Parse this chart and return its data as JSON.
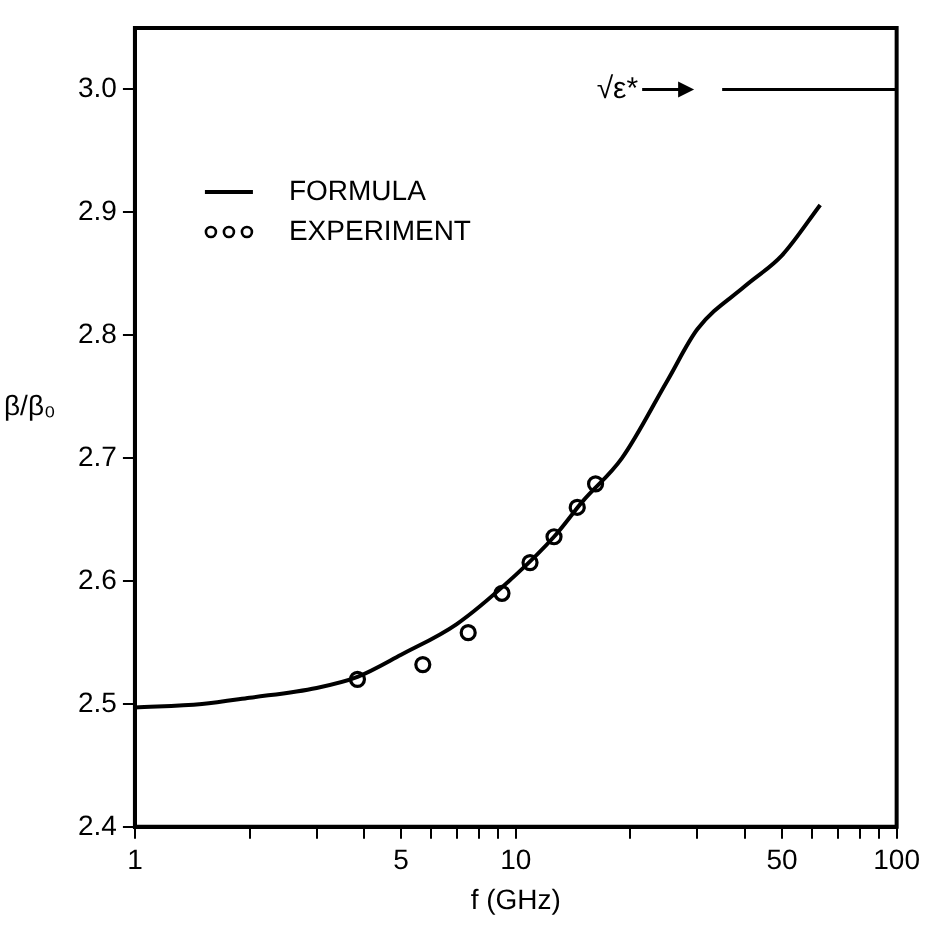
{
  "chart_data": {
    "type": "line",
    "xlabel": "f (GHz)",
    "ylabel": "β/β₀",
    "log": "x",
    "xlim": [
      1,
      100
    ],
    "xticks": [
      1,
      {
        "value": 2,
        "label": null
      },
      {
        "value": 3,
        "label": null
      },
      {
        "value": 4,
        "label": null
      },
      5,
      {
        "value": 6,
        "label": null
      },
      {
        "value": 7,
        "label": null
      },
      {
        "value": 8,
        "label": null
      },
      {
        "value": 9,
        "label": null
      },
      10,
      {
        "value": 20,
        "label": null
      },
      {
        "value": 30,
        "label": null
      },
      {
        "value": 40,
        "label": null
      },
      50,
      {
        "value": 60,
        "label": null
      },
      {
        "value": 70,
        "label": null
      },
      {
        "value": 80,
        "label": null
      },
      {
        "value": 90,
        "label": null
      },
      100
    ],
    "ylim": [
      2.4,
      3.05
    ],
    "yticks": [
      {
        "value": 2.4,
        "label": "2.4"
      },
      {
        "value": 2.5,
        "label": "2.5"
      },
      {
        "value": 2.6,
        "label": "2.6"
      },
      {
        "value": 2.7,
        "label": "2.7"
      },
      {
        "value": 2.8,
        "label": "2.8"
      },
      {
        "value": 2.9,
        "label": "2.9"
      },
      {
        "value": 3.0,
        "label": "3.0"
      }
    ],
    "grid": false,
    "legend": "top left",
    "ref_lines": [
      {
        "axis": "y",
        "value": 3.0,
        "label": "√ε*"
      }
    ],
    "series": [
      {
        "name": "FORMULA",
        "type": "line",
        "color": "#000000",
        "marker": "none",
        "line_style": "solid",
        "x": [
          1,
          1.5,
          2,
          3,
          3.84,
          5,
          7,
          10,
          12.6,
          15,
          19,
          25,
          30,
          40,
          50,
          63
        ],
        "values": [
          2.497,
          2.5,
          2.505,
          2.513,
          2.522,
          2.54,
          2.565,
          2.605,
          2.636,
          2.665,
          2.7,
          2.763,
          2.805,
          2.84,
          2.865,
          2.906
        ]
      },
      {
        "name": "EXPERIMENT",
        "type": "scatter",
        "color": "#000000",
        "marker": "circle",
        "x": [
          3.84,
          5.7,
          7.5,
          9.2,
          10.9,
          12.6,
          14.5,
          16.2
        ],
        "values": [
          2.52,
          2.532,
          2.558,
          2.59,
          2.615,
          2.636,
          2.66,
          2.679
        ]
      }
    ]
  }
}
